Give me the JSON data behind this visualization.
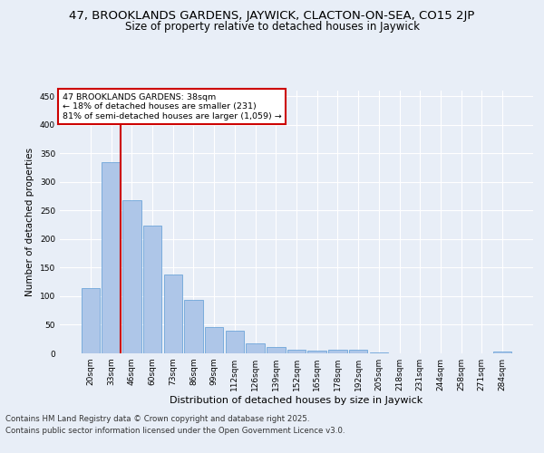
{
  "title1": "47, BROOKLANDS GARDENS, JAYWICK, CLACTON-ON-SEA, CO15 2JP",
  "title2": "Size of property relative to detached houses in Jaywick",
  "xlabel": "Distribution of detached houses by size in Jaywick",
  "ylabel": "Number of detached properties",
  "categories": [
    "20sqm",
    "33sqm",
    "46sqm",
    "60sqm",
    "73sqm",
    "86sqm",
    "99sqm",
    "112sqm",
    "126sqm",
    "139sqm",
    "152sqm",
    "165sqm",
    "178sqm",
    "192sqm",
    "205sqm",
    "218sqm",
    "231sqm",
    "244sqm",
    "258sqm",
    "271sqm",
    "284sqm"
  ],
  "values": [
    115,
    335,
    268,
    223,
    138,
    93,
    46,
    40,
    18,
    11,
    6,
    5,
    6,
    7,
    2,
    0,
    0,
    0,
    0,
    0,
    3
  ],
  "bar_color": "#aec6e8",
  "bar_edge_color": "#5b9bd5",
  "vline_color": "#cc0000",
  "annotation_title": "47 BROOKLANDS GARDENS: 38sqm",
  "annotation_line2": "← 18% of detached houses are smaller (231)",
  "annotation_line3": "81% of semi-detached houses are larger (1,059) →",
  "annotation_box_color": "#ffffff",
  "annotation_box_edge": "#cc0000",
  "ylim": [
    0,
    460
  ],
  "yticks": [
    0,
    50,
    100,
    150,
    200,
    250,
    300,
    350,
    400,
    450
  ],
  "footer1": "Contains HM Land Registry data © Crown copyright and database right 2025.",
  "footer2": "Contains public sector information licensed under the Open Government Licence v3.0.",
  "bg_color": "#e8eef7",
  "plot_bg_color": "#e8eef7",
  "title1_fontsize": 9.5,
  "title2_fontsize": 8.5,
  "xlabel_fontsize": 8,
  "ylabel_fontsize": 7.5,
  "tick_fontsize": 6.5,
  "footer_fontsize": 6.2
}
